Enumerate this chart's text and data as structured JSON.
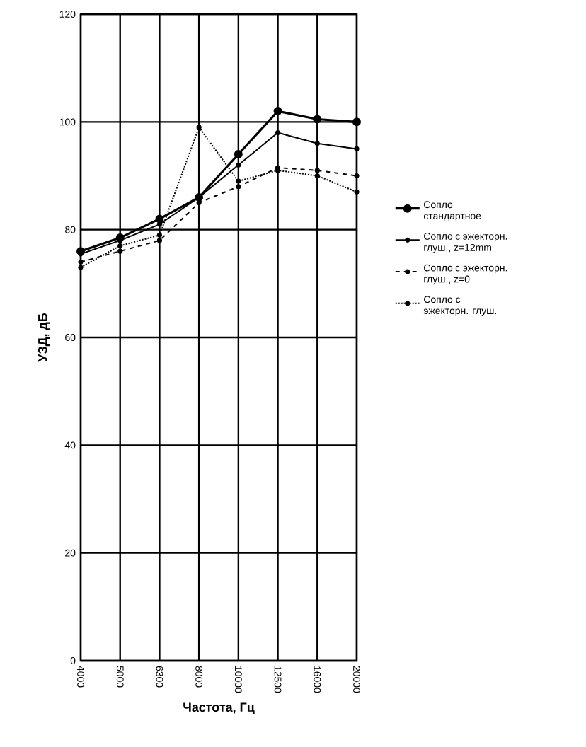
{
  "chart_data": {
    "type": "line",
    "xlabel": "Частота, Гц",
    "ylabel": "УЗД, дБ",
    "categories": [
      "4000",
      "5000",
      "6300",
      "8000",
      "10000",
      "12500",
      "16000",
      "20000"
    ],
    "series": [
      {
        "name": "Сопло стандартное",
        "color": "#000000",
        "line_style": "solid",
        "values": [
          76,
          78.5,
          82,
          86,
          94,
          102,
          100.5,
          100
        ]
      },
      {
        "name": "Сопло с эжекторн. глуш., z=12mm",
        "color": "#000000",
        "line_style": "solid",
        "values": [
          75.5,
          78,
          81,
          86,
          92,
          98,
          96,
          95
        ]
      },
      {
        "name": "Сопло с эжекторн. глуш., z=0",
        "color": "#000000",
        "line_style": "dashed",
        "values": [
          74,
          76,
          78,
          85,
          88,
          91.5,
          91,
          90
        ]
      },
      {
        "name": "Сопло с эжекторн. глуш.",
        "color": "#000000",
        "line_style": "dotted",
        "values": [
          73,
          77,
          79,
          99,
          89,
          91,
          90,
          87
        ]
      }
    ],
    "ylim": [
      0,
      120
    ],
    "yticks": [
      0,
      20,
      40,
      60,
      80,
      100,
      120
    ],
    "grid": true,
    "legend": "right",
    "marker": "circle"
  }
}
